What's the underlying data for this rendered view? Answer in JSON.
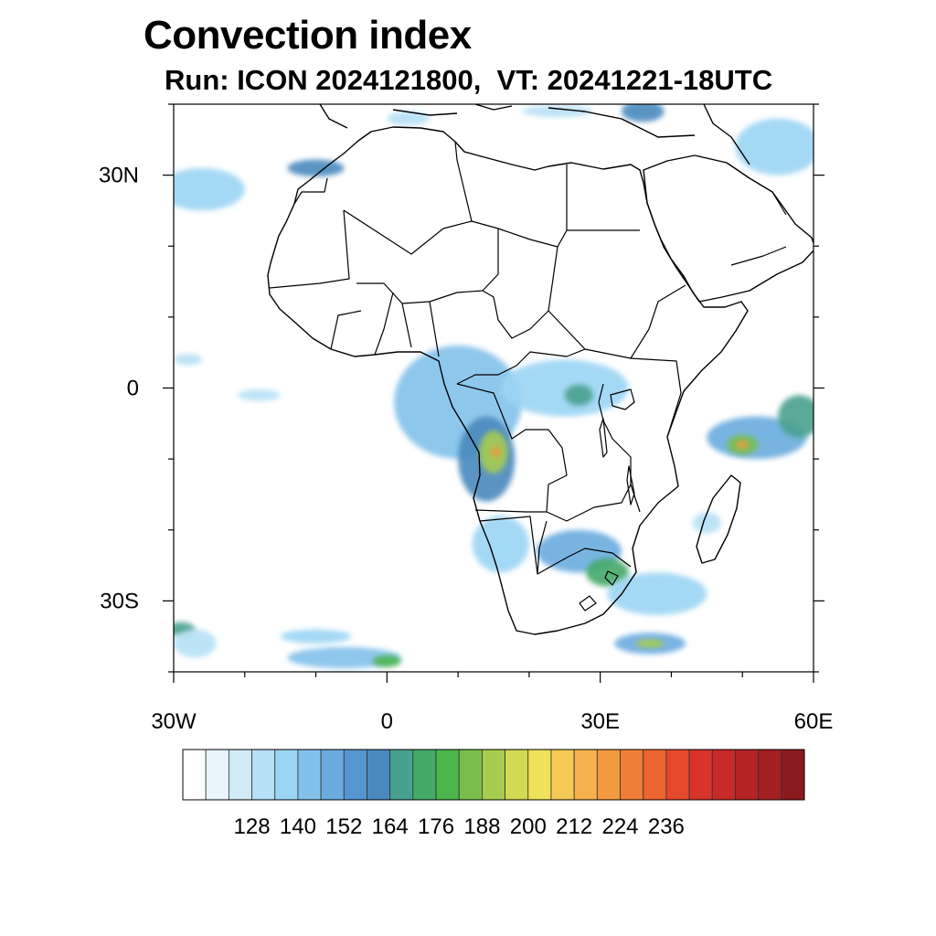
{
  "title": "Convection index",
  "subtitle": "Run: ICON 2024121800,  VT: 20241221-18UTC",
  "map": {
    "lon_range": [
      -30,
      60
    ],
    "lat_range": [
      -40,
      40
    ],
    "lat_tick_labels": [
      {
        "lat": 30,
        "label": "30N"
      },
      {
        "lat": 0,
        "label": "0"
      },
      {
        "lat": -30,
        "label": "30S"
      }
    ],
    "lon_tick_labels": [
      {
        "lon": -30,
        "label": "30W"
      },
      {
        "lon": 0,
        "label": "0"
      },
      {
        "lon": 30,
        "label": "30E"
      },
      {
        "lon": 60,
        "label": "60E"
      }
    ],
    "minor_lat_ticks": [
      -40,
      -20,
      -10,
      10,
      20,
      40
    ],
    "minor_lon_ticks": [
      -20,
      -10,
      10,
      20,
      40,
      50
    ]
  },
  "colorbar": {
    "labels": [
      "128",
      "140",
      "152",
      "164",
      "176",
      "188",
      "200",
      "212",
      "224",
      "236"
    ],
    "colors": [
      "#ffffff",
      "#e8f5fc",
      "#d0ebf8",
      "#b5e0f6",
      "#9bd5f4",
      "#82c1ea",
      "#6aacdf",
      "#5596cf",
      "#4a89bd",
      "#48a08e",
      "#45a967",
      "#4bb54c",
      "#79be4d",
      "#a8cc4f",
      "#d2d953",
      "#efe25a",
      "#f6c957",
      "#f6b24c",
      "#f39a40",
      "#ef7e36",
      "#ec6530",
      "#e4482d",
      "#d83429",
      "#c72a28",
      "#b52325",
      "#a21f22",
      "#8b1a1e"
    ]
  },
  "convection_areas": [
    {
      "lon": 10,
      "lat": -2,
      "rlon": 9,
      "rlat": 8,
      "level": 5
    },
    {
      "lon": 14,
      "lat": -10,
      "rlon": 4,
      "rlat": 6,
      "level": 8
    },
    {
      "lon": 15,
      "lat": -9,
      "rlon": 2,
      "rlat": 3,
      "level": 13
    },
    {
      "lon": 15.3,
      "lat": -9,
      "rlon": 0.6,
      "rlat": 0.8,
      "level": 18
    },
    {
      "lon": 25,
      "lat": 0,
      "rlon": 9,
      "rlat": 4,
      "level": 4
    },
    {
      "lon": 27,
      "lat": -1,
      "rlon": 2,
      "rlat": 1.5,
      "level": 9
    },
    {
      "lon": 16,
      "lat": -22,
      "rlon": 4,
      "rlat": 4,
      "level": 4
    },
    {
      "lon": 27,
      "lat": -23,
      "rlon": 6,
      "rlat": 3,
      "level": 6
    },
    {
      "lon": 31,
      "lat": -26,
      "rlon": 3,
      "rlat": 2,
      "level": 10
    },
    {
      "lon": 38,
      "lat": -29,
      "rlon": 7,
      "rlat": 3,
      "level": 4
    },
    {
      "lon": 37,
      "lat": -36,
      "rlon": 5,
      "rlat": 1.5,
      "level": 6
    },
    {
      "lon": 37,
      "lat": -36,
      "rlon": 2,
      "rlat": 0.6,
      "level": 13
    },
    {
      "lon": 52,
      "lat": -7,
      "rlon": 7,
      "rlat": 3,
      "level": 6
    },
    {
      "lon": 50,
      "lat": -8,
      "rlon": 2.2,
      "rlat": 1.4,
      "level": 12
    },
    {
      "lon": 50,
      "lat": -8,
      "rlon": 0.8,
      "rlat": 0.6,
      "level": 18
    },
    {
      "lon": 58,
      "lat": -4,
      "rlon": 3,
      "rlat": 3,
      "level": 9
    },
    {
      "lon": -26,
      "lat": 28,
      "rlon": 6,
      "rlat": 3,
      "level": 4
    },
    {
      "lon": -10,
      "lat": 31,
      "rlon": 4,
      "rlat": 1.2,
      "level": 8
    },
    {
      "lon": 55,
      "lat": 34,
      "rlon": 6,
      "rlat": 4,
      "level": 4
    },
    {
      "lon": 36,
      "lat": 39,
      "rlon": 3,
      "rlat": 1.5,
      "level": 8
    },
    {
      "lon": 3,
      "lat": 38,
      "rlon": 3,
      "rlat": 1,
      "level": 3
    },
    {
      "lon": -6,
      "lat": -38,
      "rlon": 8,
      "rlat": 1.5,
      "level": 5
    },
    {
      "lon": 0,
      "lat": -38.5,
      "rlon": 2,
      "rlat": 0.8,
      "level": 11
    },
    {
      "lon": -29,
      "lat": -34,
      "rlon": 2,
      "rlat": 1,
      "level": 9
    },
    {
      "lon": -27,
      "lat": -36,
      "rlon": 3,
      "rlat": 2,
      "level": 3
    },
    {
      "lon": -10,
      "lat": -35,
      "rlon": 5,
      "rlat": 1,
      "level": 4
    },
    {
      "lon": -18,
      "lat": -1,
      "rlon": 3,
      "rlat": 0.8,
      "level": 3
    },
    {
      "lon": -28,
      "lat": 4,
      "rlon": 2,
      "rlat": 0.8,
      "level": 3
    },
    {
      "lon": 45,
      "lat": -19,
      "rlon": 2,
      "rlat": 1.5,
      "level": 3
    },
    {
      "lon": 24,
      "lat": 39,
      "rlon": 5,
      "rlat": 0.8,
      "level": 3
    }
  ]
}
